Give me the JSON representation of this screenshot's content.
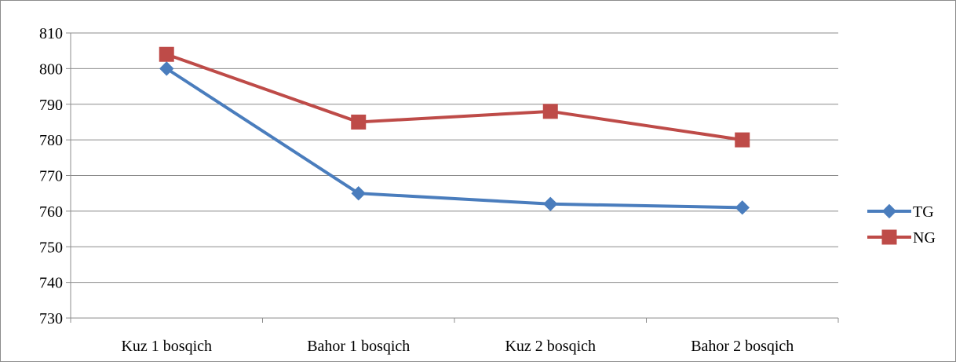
{
  "chart_data": {
    "type": "line",
    "title": "",
    "xlabel": "",
    "ylabel": "",
    "categories": [
      "Kuz 1 bosqich",
      "Bahor 1 bosqich",
      "Kuz 2 bosqich",
      "Bahor 2 bosqich"
    ],
    "ylim": [
      730,
      810
    ],
    "ytick_step": 10,
    "grid": true,
    "legend_position": "right",
    "series": [
      {
        "name": "TG",
        "values": [
          800,
          765,
          762,
          761
        ],
        "color": "#4a7dbd",
        "marker": "diamond"
      },
      {
        "name": "NG",
        "values": [
          804,
          785,
          788,
          780
        ],
        "color": "#be4b48",
        "marker": "square"
      }
    ]
  }
}
